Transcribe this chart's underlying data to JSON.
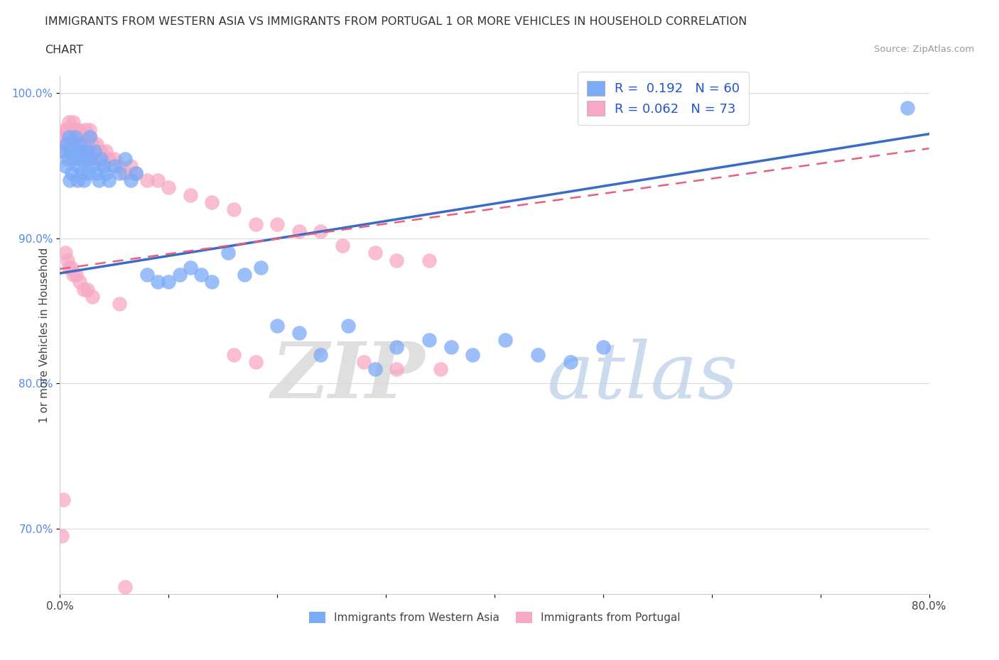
{
  "title_line1": "IMMIGRANTS FROM WESTERN ASIA VS IMMIGRANTS FROM PORTUGAL 1 OR MORE VEHICLES IN HOUSEHOLD CORRELATION",
  "title_line2": "CHART",
  "source": "Source: ZipAtlas.com",
  "ylabel": "1 or more Vehicles in Household",
  "xlim": [
    0.0,
    0.8
  ],
  "ylim": [
    0.655,
    1.012
  ],
  "yticks": [
    0.7,
    0.8,
    0.9,
    1.0
  ],
  "ytick_labels": [
    "70.0%",
    "80.0%",
    "90.0%",
    "100.0%"
  ],
  "xticks": [
    0.0,
    0.1,
    0.2,
    0.3,
    0.4,
    0.5,
    0.6,
    0.7,
    0.8
  ],
  "xtick_labels": [
    "0.0%",
    "",
    "",
    "",
    "",
    "",
    "",
    "",
    "80.0%"
  ],
  "legend_r1": "R =  0.192",
  "legend_n1": "N = 60",
  "legend_r2": "R = 0.062",
  "legend_n2": "N = 73",
  "color_blue": "#7baaf7",
  "color_pink": "#f7a8c4",
  "trend_blue": "#3a6bc9",
  "trend_pink": "#e8607a",
  "series1_label": "Immigrants from Western Asia",
  "series2_label": "Immigrants from Portugal",
  "blue_trend_x0": 0.0,
  "blue_trend_y0": 0.876,
  "blue_trend_x1": 0.8,
  "blue_trend_y1": 0.972,
  "pink_trend_x0": 0.0,
  "pink_trend_y0": 0.879,
  "pink_trend_x1": 0.8,
  "pink_trend_y1": 0.962,
  "blue_x": [
    0.003,
    0.005,
    0.006,
    0.007,
    0.008,
    0.009,
    0.01,
    0.011,
    0.012,
    0.014,
    0.015,
    0.016,
    0.017,
    0.018,
    0.019,
    0.02,
    0.021,
    0.022,
    0.023,
    0.025,
    0.026,
    0.027,
    0.028,
    0.03,
    0.032,
    0.034,
    0.036,
    0.038,
    0.04,
    0.042,
    0.045,
    0.05,
    0.055,
    0.06,
    0.065,
    0.07,
    0.08,
    0.09,
    0.1,
    0.11,
    0.12,
    0.13,
    0.14,
    0.155,
    0.17,
    0.185,
    0.2,
    0.22,
    0.24,
    0.265,
    0.29,
    0.31,
    0.34,
    0.36,
    0.38,
    0.41,
    0.44,
    0.47,
    0.5,
    0.78
  ],
  "blue_y": [
    0.96,
    0.95,
    0.965,
    0.955,
    0.97,
    0.94,
    0.96,
    0.945,
    0.955,
    0.97,
    0.96,
    0.94,
    0.95,
    0.965,
    0.955,
    0.945,
    0.96,
    0.94,
    0.955,
    0.96,
    0.945,
    0.97,
    0.955,
    0.95,
    0.96,
    0.945,
    0.94,
    0.955,
    0.95,
    0.945,
    0.94,
    0.95,
    0.945,
    0.955,
    0.94,
    0.945,
    0.875,
    0.87,
    0.87,
    0.875,
    0.88,
    0.875,
    0.87,
    0.89,
    0.875,
    0.88,
    0.84,
    0.835,
    0.82,
    0.84,
    0.81,
    0.825,
    0.83,
    0.825,
    0.82,
    0.83,
    0.82,
    0.815,
    0.825,
    0.99
  ],
  "pink_x": [
    0.002,
    0.003,
    0.004,
    0.005,
    0.006,
    0.007,
    0.008,
    0.009,
    0.01,
    0.011,
    0.012,
    0.013,
    0.014,
    0.015,
    0.016,
    0.017,
    0.018,
    0.019,
    0.02,
    0.021,
    0.022,
    0.023,
    0.024,
    0.025,
    0.026,
    0.027,
    0.028,
    0.03,
    0.032,
    0.034,
    0.036,
    0.038,
    0.04,
    0.042,
    0.045,
    0.05,
    0.055,
    0.06,
    0.065,
    0.07,
    0.08,
    0.09,
    0.1,
    0.12,
    0.14,
    0.16,
    0.18,
    0.2,
    0.22,
    0.24,
    0.26,
    0.29,
    0.31,
    0.34,
    0.005,
    0.007,
    0.008,
    0.01,
    0.012,
    0.015,
    0.018,
    0.022,
    0.025,
    0.03,
    0.055,
    0.16,
    0.18,
    0.28,
    0.31,
    0.35,
    0.002,
    0.003,
    0.06
  ],
  "pink_y": [
    0.96,
    0.97,
    0.975,
    0.965,
    0.975,
    0.97,
    0.98,
    0.96,
    0.97,
    0.975,
    0.98,
    0.965,
    0.975,
    0.97,
    0.965,
    0.975,
    0.97,
    0.96,
    0.965,
    0.97,
    0.96,
    0.975,
    0.965,
    0.97,
    0.965,
    0.975,
    0.97,
    0.965,
    0.96,
    0.965,
    0.955,
    0.96,
    0.955,
    0.96,
    0.955,
    0.955,
    0.95,
    0.945,
    0.95,
    0.945,
    0.94,
    0.94,
    0.935,
    0.93,
    0.925,
    0.92,
    0.91,
    0.91,
    0.905,
    0.905,
    0.895,
    0.89,
    0.885,
    0.885,
    0.89,
    0.885,
    0.88,
    0.88,
    0.875,
    0.875,
    0.87,
    0.865,
    0.865,
    0.86,
    0.855,
    0.82,
    0.815,
    0.815,
    0.81,
    0.81,
    0.695,
    0.72,
    0.66
  ]
}
